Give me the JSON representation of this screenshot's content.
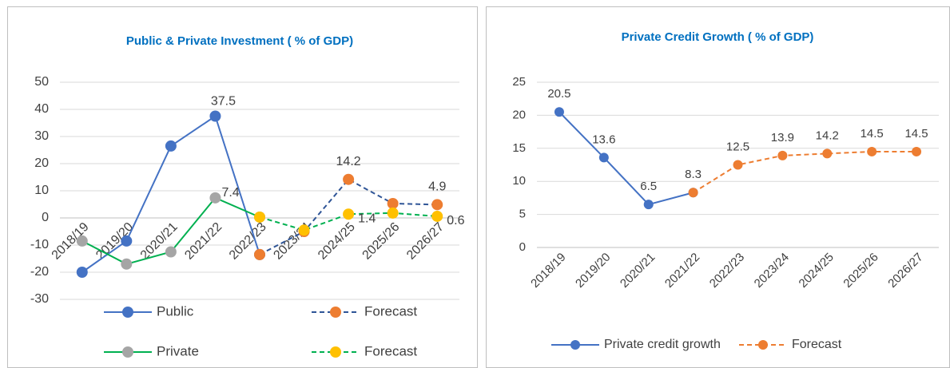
{
  "chart_data": [
    {
      "type": "line",
      "title": "Public & Private Investment ( % of GDP)",
      "categories": [
        "2018/19",
        "2019/20",
        "2020/21",
        "2021/22",
        "2022/23",
        "2023/24",
        "2024/25",
        "2025/26",
        "2026/27"
      ],
      "series": [
        {
          "name": "Public",
          "color": "#4472c4",
          "marker_color": "#4472c4",
          "line_style": "solid",
          "values": [
            -20,
            -8.5,
            26.5,
            37.5,
            -13.5,
            null,
            null,
            null,
            null
          ],
          "value_labels": [
            null,
            null,
            null,
            "37.5",
            null,
            null,
            null,
            null,
            null
          ]
        },
        {
          "name": "Forecast",
          "color": "#2f5597",
          "marker_color": "#ed7d31",
          "line_style": "dashed",
          "values": [
            null,
            null,
            null,
            null,
            -13.5,
            -5,
            14.2,
            5.3,
            4.9
          ],
          "value_labels": [
            null,
            null,
            null,
            null,
            null,
            null,
            "14.2",
            null,
            "4.9"
          ]
        },
        {
          "name": "Private",
          "color": "#00b050",
          "marker_color": "#a5a5a5",
          "line_style": "solid",
          "values": [
            -8.5,
            -17,
            -12.5,
            7.4,
            0.3,
            null,
            null,
            null,
            null
          ],
          "value_labels": [
            null,
            null,
            null,
            "7.4",
            null,
            null,
            null,
            null,
            null
          ]
        },
        {
          "name": "Forecast",
          "color": "#00b050",
          "marker_color": "#ffc000",
          "line_style": "dashed",
          "values": [
            null,
            null,
            null,
            null,
            0.3,
            -4.5,
            1.4,
            1.8,
            0.6
          ],
          "value_labels": [
            null,
            null,
            null,
            null,
            null,
            null,
            "1.4",
            null,
            "0.6"
          ]
        }
      ],
      "ylim": [
        -30,
        50
      ],
      "yticks": [
        -30,
        -20,
        -10,
        0,
        10,
        20,
        30,
        40,
        50
      ],
      "grid": true,
      "legend": "bottom"
    },
    {
      "type": "line",
      "title": "Private Credit Growth ( % of GDP)",
      "categories": [
        "2018/19",
        "2019/20",
        "2020/21",
        "2021/22",
        "2022/23",
        "2023/24",
        "2024/25",
        "2025/26",
        "2026/27"
      ],
      "series": [
        {
          "name": "Private credit growth",
          "color": "#4472c4",
          "marker_color": "#4472c4",
          "line_style": "solid",
          "values": [
            20.5,
            13.6,
            6.5,
            8.3,
            null,
            null,
            null,
            null,
            null
          ],
          "value_labels": [
            "20.5",
            "13.6",
            "6.5",
            null,
            null,
            null,
            null,
            null,
            null
          ]
        },
        {
          "name": "Forecast",
          "color": "#ed7d31",
          "marker_color": "#ed7d31",
          "line_style": "dashed",
          "values": [
            null,
            null,
            null,
            8.3,
            12.5,
            13.9,
            14.2,
            14.5,
            14.5
          ],
          "value_labels": [
            null,
            null,
            null,
            "8.3",
            "12.5",
            "13.9",
            "14.2",
            "14.5",
            "14.5"
          ]
        }
      ],
      "ylim": [
        0,
        25
      ],
      "yticks": [
        0,
        5,
        10,
        15,
        20,
        25
      ],
      "grid": true,
      "legend": "bottom"
    }
  ]
}
